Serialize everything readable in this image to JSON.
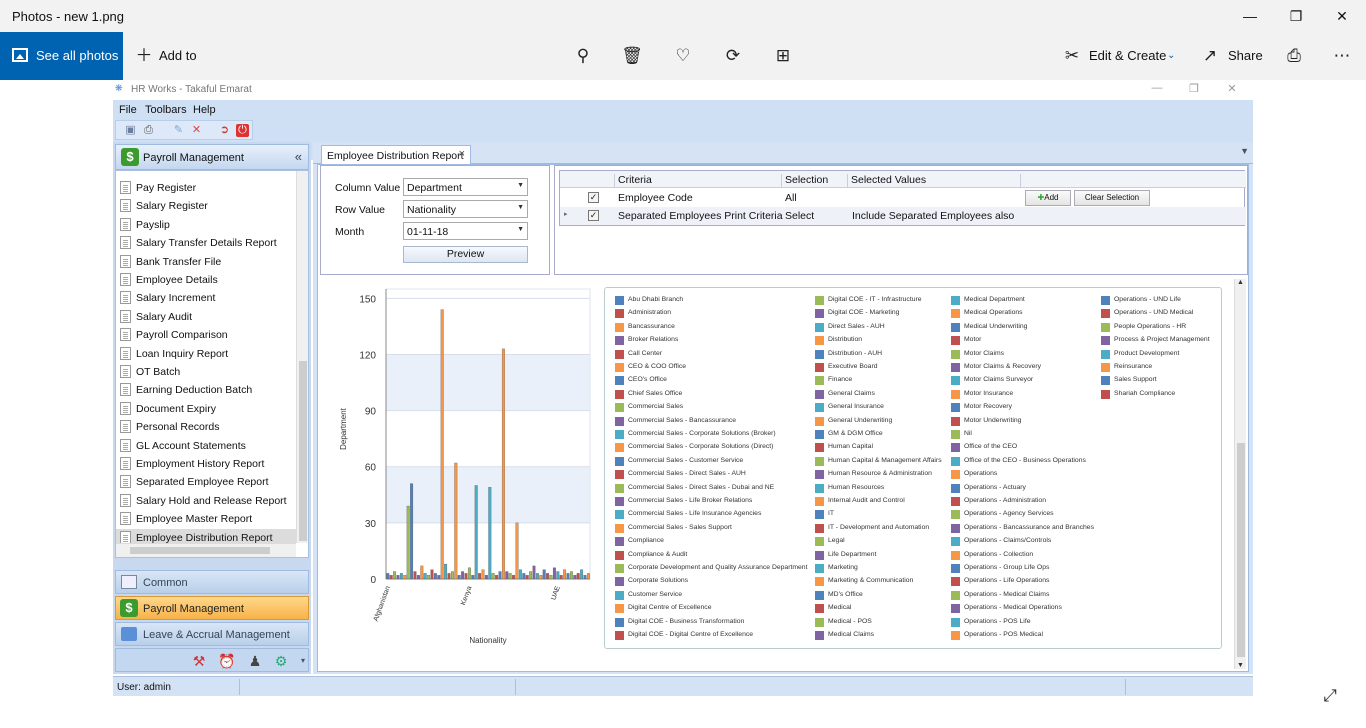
{
  "window": {
    "title": "Photos - new 1.png"
  },
  "photos_toolbar": {
    "see_all": "See all photos",
    "add_to": "Add to",
    "edit_create": "Edit & Create",
    "share": "Share"
  },
  "app": {
    "title": "HR Works - Takaful Emarat",
    "menu": [
      "File",
      "Toolbars",
      "Help"
    ],
    "status_user": "User: admin"
  },
  "left_panel": {
    "header": "Payroll Management",
    "items": [
      "Pay Register",
      "Salary Register",
      "Payslip",
      "Salary Transfer Details Report",
      "Bank Transfer File",
      "Employee Details",
      "Salary Increment",
      "Salary Audit",
      "Payroll Comparison",
      "Loan Inquiry Report",
      "OT Batch",
      "Earning Deduction Batch",
      "Document Expiry",
      "Personal Records",
      "GL Account Statements",
      "Employment History Report",
      "Separated Employee Report",
      "Salary Hold and Release Report",
      "Employee Master Report",
      "Employee Distribution Report"
    ],
    "nav": {
      "common": "Common",
      "payroll": "Payroll Management",
      "leave": "Leave & Accrual Management"
    }
  },
  "tab": {
    "label": "Employee Distribution Report"
  },
  "criteria": {
    "column_label": "Column Value",
    "column_value": "Department",
    "row_label": "Row Value",
    "row_value": "Nationality",
    "month_label": "Month",
    "month_value": "01-11-18",
    "preview": "Preview"
  },
  "grid": {
    "headers": [
      "Criteria",
      "Selection",
      "Selected Values"
    ],
    "rows": [
      {
        "criteria": "Employee Code",
        "selection": "All",
        "values": "",
        "add": "Add",
        "clear": "Clear Selection"
      },
      {
        "criteria": "Separated Employees Print Criteria",
        "selection": "Select",
        "values": "Include Separated Employees also"
      }
    ]
  },
  "chart_data": {
    "type": "bar",
    "title": "",
    "xlabel": "Nationality",
    "ylabel": "Department",
    "ylim": [
      0,
      155
    ],
    "yticks": [
      0,
      30,
      60,
      90,
      120,
      150
    ],
    "xticks": [
      "Afghanistan",
      "Kenya",
      "UAE"
    ],
    "bars": [
      {
        "x": 0,
        "value": 3,
        "color": "#4f81bd"
      },
      {
        "x": 1,
        "value": 2,
        "color": "#c0504d"
      },
      {
        "x": 2,
        "value": 4,
        "color": "#9bbb59"
      },
      {
        "x": 3,
        "value": 2,
        "color": "#8064a2"
      },
      {
        "x": 4,
        "value": 3,
        "color": "#4bacc6"
      },
      {
        "x": 5,
        "value": 2,
        "color": "#f79646"
      },
      {
        "x": 6,
        "value": 39,
        "color": "#9bbb59"
      },
      {
        "x": 7,
        "value": 51,
        "color": "#4f81bd"
      },
      {
        "x": 8,
        "value": 4,
        "color": "#c0504d"
      },
      {
        "x": 9,
        "value": 2,
        "color": "#8064a2"
      },
      {
        "x": 10,
        "value": 7,
        "color": "#f79646"
      },
      {
        "x": 11,
        "value": 3,
        "color": "#4bacc6"
      },
      {
        "x": 12,
        "value": 2,
        "color": "#9bbb59"
      },
      {
        "x": 13,
        "value": 5,
        "color": "#c0504d"
      },
      {
        "x": 14,
        "value": 3,
        "color": "#4f81bd"
      },
      {
        "x": 15,
        "value": 2,
        "color": "#8064a2"
      },
      {
        "x": 16,
        "value": 144,
        "color": "#f79646"
      },
      {
        "x": 17,
        "value": 8,
        "color": "#4bacc6"
      },
      {
        "x": 18,
        "value": 3,
        "color": "#c0504d"
      },
      {
        "x": 19,
        "value": 4,
        "color": "#9bbb59"
      },
      {
        "x": 20,
        "value": 62,
        "color": "#f79646"
      },
      {
        "x": 21,
        "value": 2,
        "color": "#4f81bd"
      },
      {
        "x": 22,
        "value": 4,
        "color": "#8064a2"
      },
      {
        "x": 23,
        "value": 3,
        "color": "#c0504d"
      },
      {
        "x": 24,
        "value": 6,
        "color": "#9bbb59"
      },
      {
        "x": 25,
        "value": 2,
        "color": "#4f81bd"
      },
      {
        "x": 26,
        "value": 50,
        "color": "#4bacc6"
      },
      {
        "x": 27,
        "value": 3,
        "color": "#c0504d"
      },
      {
        "x": 28,
        "value": 5,
        "color": "#f79646"
      },
      {
        "x": 29,
        "value": 2,
        "color": "#8064a2"
      },
      {
        "x": 30,
        "value": 49,
        "color": "#4bacc6"
      },
      {
        "x": 31,
        "value": 3,
        "color": "#9bbb59"
      },
      {
        "x": 32,
        "value": 2,
        "color": "#c0504d"
      },
      {
        "x": 33,
        "value": 4,
        "color": "#4f81bd"
      },
      {
        "x": 34,
        "value": 123,
        "color": "#f79646"
      },
      {
        "x": 35,
        "value": 4,
        "color": "#8064a2"
      },
      {
        "x": 36,
        "value": 3,
        "color": "#9bbb59"
      },
      {
        "x": 37,
        "value": 2,
        "color": "#c0504d"
      },
      {
        "x": 38,
        "value": 30,
        "color": "#f79646"
      },
      {
        "x": 39,
        "value": 5,
        "color": "#4bacc6"
      },
      {
        "x": 40,
        "value": 3,
        "color": "#4f81bd"
      },
      {
        "x": 41,
        "value": 2,
        "color": "#c0504d"
      },
      {
        "x": 42,
        "value": 4,
        "color": "#9bbb59"
      },
      {
        "x": 43,
        "value": 7,
        "color": "#8064a2"
      },
      {
        "x": 44,
        "value": 3,
        "color": "#4bacc6"
      },
      {
        "x": 45,
        "value": 2,
        "color": "#f79646"
      },
      {
        "x": 46,
        "value": 5,
        "color": "#4f81bd"
      },
      {
        "x": 47,
        "value": 3,
        "color": "#c0504d"
      },
      {
        "x": 48,
        "value": 2,
        "color": "#9bbb59"
      },
      {
        "x": 49,
        "value": 6,
        "color": "#8064a2"
      },
      {
        "x": 50,
        "value": 4,
        "color": "#4bacc6"
      },
      {
        "x": 51,
        "value": 2,
        "color": "#c0504d"
      },
      {
        "x": 52,
        "value": 5,
        "color": "#f79646"
      },
      {
        "x": 53,
        "value": 3,
        "color": "#4f81bd"
      },
      {
        "x": 54,
        "value": 4,
        "color": "#9bbb59"
      },
      {
        "x": 55,
        "value": 2,
        "color": "#8064a2"
      },
      {
        "x": 56,
        "value": 3,
        "color": "#c0504d"
      },
      {
        "x": 57,
        "value": 5,
        "color": "#4bacc6"
      },
      {
        "x": 58,
        "value": 2,
        "color": "#4f81bd"
      },
      {
        "x": 59,
        "value": 3,
        "color": "#f79646"
      }
    ],
    "legend": [
      [
        "Abu Dhabi Branch",
        "#4f81bd"
      ],
      [
        "Administration",
        "#c0504d"
      ],
      [
        "Bancassurance",
        "#f79646"
      ],
      [
        "Broker Relations",
        "#8064a2"
      ],
      [
        "Call Center",
        "#c0504d"
      ],
      [
        "CEO & COO Office",
        "#f79646"
      ],
      [
        "CEO's Office",
        "#4f81bd"
      ],
      [
        "Chief Sales Office",
        "#c0504d"
      ],
      [
        "Commercial Sales",
        "#9bbb59"
      ],
      [
        "Commercial Sales - Bancassurance",
        "#8064a2"
      ],
      [
        "Commercial Sales - Corporate Solutions (Broker)",
        "#4bacc6"
      ],
      [
        "Commercial Sales - Corporate Solutions (Direct)",
        "#f79646"
      ],
      [
        "Commercial Sales - Customer Service",
        "#4f81bd"
      ],
      [
        "Commercial Sales - Direct Sales - AUH",
        "#c0504d"
      ],
      [
        "Commercial Sales - Direct Sales - Dubai and NE",
        "#9bbb59"
      ],
      [
        "Commercial Sales - Life Broker Relations",
        "#8064a2"
      ],
      [
        "Commercial Sales - Life Insurance Agencies",
        "#4bacc6"
      ],
      [
        "Commercial Sales - Sales Support",
        "#f79646"
      ],
      [
        "Compliance",
        "#8064a2"
      ],
      [
        "Compliance & Audit",
        "#c0504d"
      ],
      [
        "Corporate Development and Quality Assurance Department",
        "#9bbb59"
      ],
      [
        "Corporate Solutions",
        "#8064a2"
      ],
      [
        "Customer Service",
        "#4bacc6"
      ],
      [
        "Digital Centre of Excellence",
        "#f79646"
      ],
      [
        "Digital COE - Business Transformation",
        "#4f81bd"
      ],
      [
        "Digital COE - Digital Centre of Excellence",
        "#c0504d"
      ],
      [
        "Digital COE - IT - Infrastructure",
        "#9bbb59"
      ],
      [
        "Digital COE - Marketing",
        "#8064a2"
      ],
      [
        "Direct Sales - AUH",
        "#4bacc6"
      ],
      [
        "Distribution",
        "#f79646"
      ],
      [
        "Distribution - AUH",
        "#4f81bd"
      ],
      [
        "Executive Board",
        "#c0504d"
      ],
      [
        "Finance",
        "#9bbb59"
      ],
      [
        "General Claims",
        "#8064a2"
      ],
      [
        "General Insurance",
        "#4bacc6"
      ],
      [
        "General Underwriting",
        "#f79646"
      ],
      [
        "GM & DGM Office",
        "#4f81bd"
      ],
      [
        "Human Capital",
        "#c0504d"
      ],
      [
        "Human Capital & Management Affairs",
        "#9bbb59"
      ],
      [
        "Human Resource & Administration",
        "#8064a2"
      ],
      [
        "Human Resources",
        "#4bacc6"
      ],
      [
        "Internal Audit and Control",
        "#f79646"
      ],
      [
        "IT",
        "#4f81bd"
      ],
      [
        "IT - Development and Automation",
        "#c0504d"
      ],
      [
        "Legal",
        "#9bbb59"
      ],
      [
        "Life Department",
        "#8064a2"
      ],
      [
        "Marketing",
        "#4bacc6"
      ],
      [
        "Marketing & Communication",
        "#f79646"
      ],
      [
        "MD's Office",
        "#4f81bd"
      ],
      [
        "Medical",
        "#c0504d"
      ],
      [
        "Medical - POS",
        "#9bbb59"
      ],
      [
        "Medical Claims",
        "#8064a2"
      ],
      [
        "Medical Department",
        "#4bacc6"
      ],
      [
        "Medical Operations",
        "#f79646"
      ],
      [
        "Medical Underwriting",
        "#4f81bd"
      ],
      [
        "Motor",
        "#c0504d"
      ],
      [
        "Motor Claims",
        "#9bbb59"
      ],
      [
        "Motor Claims & Recovery",
        "#8064a2"
      ],
      [
        "Motor Claims Surveyor",
        "#4bacc6"
      ],
      [
        "Motor Insurance",
        "#f79646"
      ],
      [
        "Motor Recovery",
        "#4f81bd"
      ],
      [
        "Motor Underwriting",
        "#c0504d"
      ],
      [
        "Nil",
        "#9bbb59"
      ],
      [
        "Office of the CEO",
        "#8064a2"
      ],
      [
        "Office of the CEO - Business Operations",
        "#4bacc6"
      ],
      [
        "Operations",
        "#f79646"
      ],
      [
        "Operations - Actuary",
        "#4f81bd"
      ],
      [
        "Operations - Administration",
        "#c0504d"
      ],
      [
        "Operations - Agency Services",
        "#9bbb59"
      ],
      [
        "Operations - Bancassurance and Branches",
        "#8064a2"
      ],
      [
        "Operations - Claims/Controls",
        "#4bacc6"
      ],
      [
        "Operations - Collection",
        "#f79646"
      ],
      [
        "Operations - Group Life Ops",
        "#4f81bd"
      ],
      [
        "Operations - Life Operations",
        "#c0504d"
      ],
      [
        "Operations - Medical Claims",
        "#9bbb59"
      ],
      [
        "Operations - Medical Operations",
        "#8064a2"
      ],
      [
        "Operations - POS Life",
        "#4bacc6"
      ],
      [
        "Operations - POS Medical",
        "#f79646"
      ],
      [
        "Operations - UND Life",
        "#4f81bd"
      ],
      [
        "Operations - UND Medical",
        "#c0504d"
      ],
      [
        "People Operations - HR",
        "#9bbb59"
      ],
      [
        "Process & Project Management",
        "#8064a2"
      ],
      [
        "Product Development",
        "#4bacc6"
      ],
      [
        "Reinsurance",
        "#f79646"
      ],
      [
        "Sales Support",
        "#4f81bd"
      ],
      [
        "Shariah Compliance",
        "#c0504d"
      ]
    ]
  }
}
